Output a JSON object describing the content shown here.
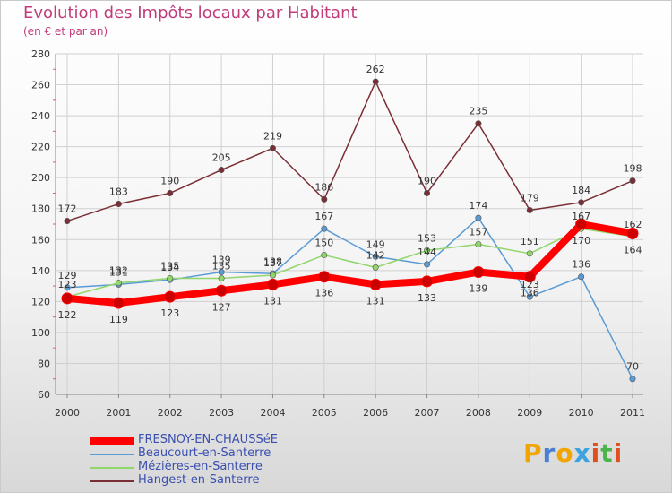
{
  "header": {
    "title": "Evolution des Impôts locaux par Habitant",
    "subtitle": "(en € et par an)"
  },
  "logo": {
    "letters": [
      "P",
      "r",
      "o",
      "x",
      "i",
      "t",
      "i"
    ],
    "colors": [
      "#f0a500",
      "#4a7fd4",
      "#f0a500",
      "#3aa3e0",
      "#e0501e",
      "#4ab34a",
      "#e0501e"
    ]
  },
  "chart_data": {
    "type": "line",
    "title": "Evolution des Impôts locaux par Habitant",
    "subtitle": "(en € et par an)",
    "xlabel": "",
    "ylabel": "",
    "categories": [
      "2000",
      "2001",
      "2002",
      "2003",
      "2004",
      "2005",
      "2006",
      "2007",
      "2008",
      "2009",
      "2010",
      "2011"
    ],
    "ylim": [
      60,
      280
    ],
    "yticks": [
      60,
      80,
      100,
      120,
      140,
      160,
      180,
      200,
      220,
      240,
      260,
      280
    ],
    "grid": true,
    "series": [
      {
        "name": "FRESNOY-EN-CHAUSSéE",
        "color": "#ff0000",
        "values": [
          122,
          119,
          123,
          127,
          131,
          136,
          131,
          133,
          139,
          136,
          170,
          164
        ],
        "labels": [
          "122",
          "119",
          "123",
          "127",
          "131",
          "136",
          "131",
          "133",
          "139",
          "136",
          "170",
          "164"
        ]
      },
      {
        "name": "Beaucourt-en-Santerre",
        "color": "#5a9bd5",
        "values": [
          129,
          131,
          134,
          139,
          138,
          167,
          149,
          144,
          174,
          123,
          136,
          70
        ],
        "labels": [
          "129",
          "131",
          "134",
          "139",
          "138",
          "167",
          "149",
          "144",
          "174",
          "123",
          "136",
          "70"
        ]
      },
      {
        "name": "Mézières-en-Santerre",
        "color": "#90d66a",
        "values": [
          123,
          132,
          135,
          135,
          137,
          150,
          142,
          153,
          157,
          151,
          167,
          162
        ],
        "labels": [
          "123",
          "132",
          "135",
          "135",
          "137",
          "150",
          "142",
          "153",
          "157",
          "151",
          "167",
          "162"
        ]
      },
      {
        "name": "Hangest-en-Santerre",
        "color": "#7a2e35",
        "values": [
          172,
          183,
          190,
          205,
          219,
          186,
          262,
          190,
          235,
          179,
          184,
          198
        ],
        "labels": [
          "172",
          "183",
          "190",
          "205",
          "219",
          "186",
          "262",
          "190",
          "235",
          "179",
          "184",
          "198"
        ]
      }
    ]
  }
}
